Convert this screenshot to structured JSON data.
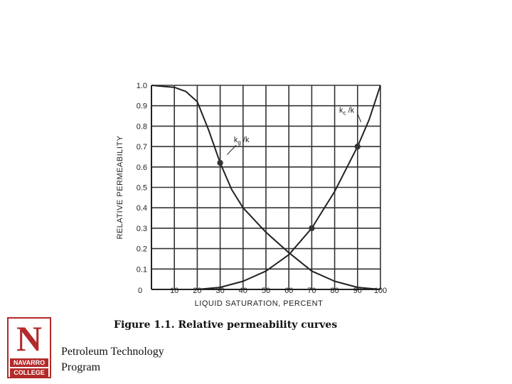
{
  "chart_data": {
    "type": "line",
    "title": "",
    "xlabel": "LIQUID SATURATION, PERCENT",
    "ylabel": "RELATIVE PERMEABILITY",
    "xlim": [
      0,
      100
    ],
    "ylim": [
      0,
      1.0
    ],
    "x_ticks": [
      "0",
      "10",
      "20",
      "30",
      "40",
      "50",
      "60",
      "70",
      "80",
      "90",
      "100"
    ],
    "y_ticks": [
      "1.0",
      "0.9",
      "0.8",
      "0.7",
      "0.6",
      "0.5",
      "0.4",
      "0.3",
      "0.2",
      "0.1"
    ],
    "grid": true,
    "series": [
      {
        "name": "kg/k",
        "x": [
          0,
          10,
          15,
          20,
          25,
          30,
          35,
          40,
          50,
          60,
          70,
          80,
          90,
          100
        ],
        "y": [
          1.0,
          0.99,
          0.97,
          0.92,
          0.78,
          0.62,
          0.49,
          0.4,
          0.28,
          0.18,
          0.09,
          0.04,
          0.01,
          0.0
        ]
      },
      {
        "name": "kc/k",
        "x": [
          0,
          20,
          30,
          40,
          50,
          60,
          70,
          80,
          90,
          95,
          100
        ],
        "y": [
          0.0,
          0.0,
          0.01,
          0.04,
          0.09,
          0.17,
          0.3,
          0.48,
          0.7,
          0.83,
          1.0
        ]
      }
    ],
    "markers": [
      {
        "x": 30,
        "y": 0.62
      },
      {
        "x": 70,
        "y": 0.3
      },
      {
        "x": 90,
        "y": 0.7
      }
    ],
    "curve_labels": {
      "kg": {
        "main": "k",
        "sub": "g",
        "tail": " /k"
      },
      "kc": {
        "main": "k",
        "sub": "c",
        "tail": " /k"
      }
    }
  },
  "caption": "Figure 1.1. Relative permeability curves",
  "logo": {
    "letter": "N",
    "line1": "NAVARRO",
    "line2": "COLLEGE"
  },
  "footer": {
    "line1": "Petroleum Technology",
    "line2": "Program"
  }
}
